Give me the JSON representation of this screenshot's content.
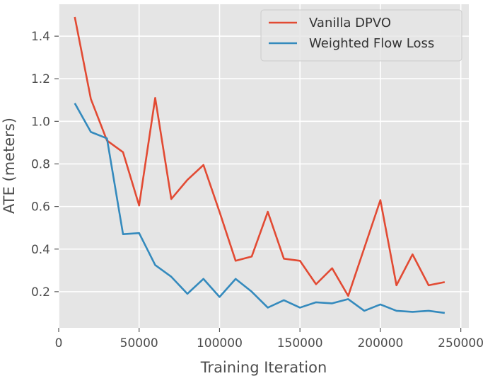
{
  "chart_data": {
    "type": "line",
    "title": "",
    "xlabel": "Training Iteration",
    "ylabel": "ATE (meters)",
    "xlim": [
      0,
      255000
    ],
    "ylim": [
      0.03,
      1.55
    ],
    "xticks": [
      0,
      50000,
      100000,
      150000,
      200000,
      250000
    ],
    "xtick_labels": [
      "0",
      "50000",
      "100000",
      "150000",
      "200000",
      "250000"
    ],
    "yticks": [
      0.2,
      0.4,
      0.6,
      0.8,
      1.0,
      1.2,
      1.4
    ],
    "ytick_labels": [
      "0.2",
      "0.4",
      "0.6",
      "0.8",
      "1.0",
      "1.2",
      "1.4"
    ],
    "grid": true,
    "legend_position": "top-right",
    "x": [
      10000,
      20000,
      30000,
      40000,
      50000,
      60000,
      70000,
      80000,
      90000,
      100000,
      110000,
      120000,
      130000,
      140000,
      150000,
      160000,
      170000,
      180000,
      190000,
      200000,
      210000,
      220000,
      230000,
      240000
    ],
    "series": [
      {
        "name": "Vanilla DPVO",
        "color": "#e24a33",
        "values": [
          1.49,
          1.105,
          0.91,
          0.855,
          0.605,
          1.11,
          0.635,
          0.725,
          0.795,
          0.575,
          0.345,
          0.365,
          0.575,
          0.355,
          0.345,
          0.235,
          0.31,
          0.18,
          0.405,
          0.63,
          0.23,
          0.375,
          0.23,
          0.245
        ]
      },
      {
        "name": "Weighted Flow Loss",
        "color": "#348abd",
        "values": [
          1.085,
          0.95,
          0.92,
          0.47,
          0.475,
          0.325,
          0.27,
          0.19,
          0.26,
          0.175,
          0.26,
          0.2,
          0.125,
          0.16,
          0.125,
          0.15,
          0.145,
          0.165,
          0.11,
          0.14,
          0.11,
          0.105,
          0.11,
          0.1
        ]
      }
    ]
  }
}
